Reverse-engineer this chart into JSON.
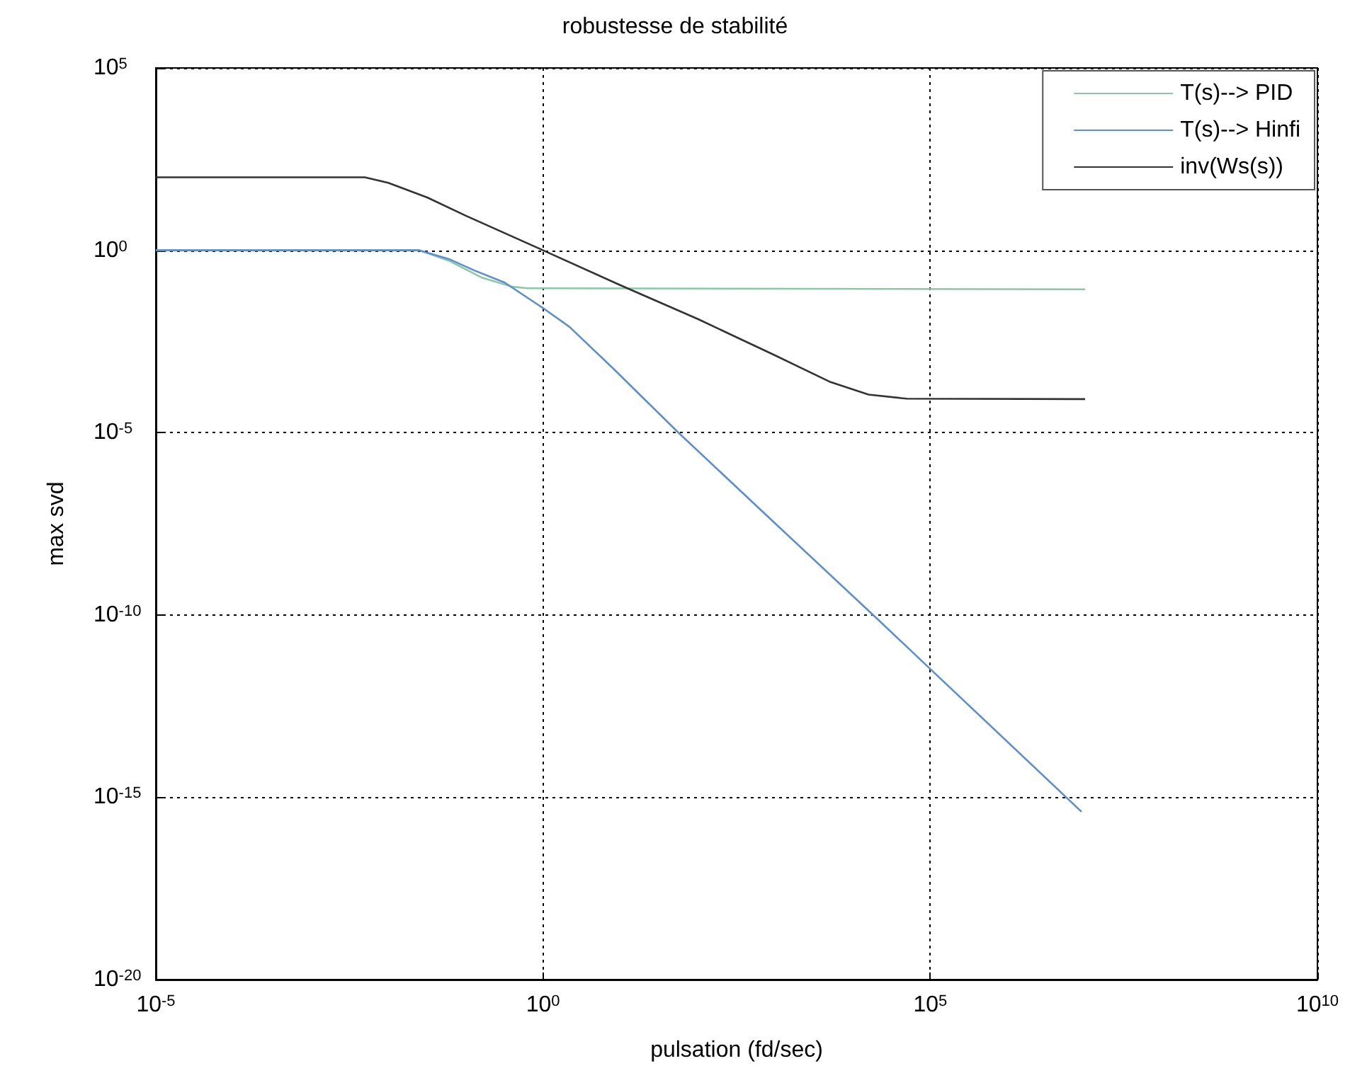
{
  "chart_data": {
    "type": "line",
    "title": "robustesse de stabilité",
    "xlabel": "pulsation (fd/sec)",
    "ylabel": "max svd",
    "log": "xy",
    "grid": true,
    "legend": "top right",
    "marker": "none",
    "xlim": [
      1e-05,
      10000000000.0
    ],
    "xticks": [
      {
        "value": 1e-05,
        "label": "10$^{-5}$"
      },
      {
        "value": 1,
        "label": "10$^{0}$"
      },
      {
        "value": 100000.0,
        "label": "10$^{5}$"
      },
      {
        "value": 10000000000.0,
        "label": "10$^{10}$"
      }
    ],
    "ylim": [
      1e-20,
      100000.0
    ],
    "yticks": [
      {
        "value": 1e-20,
        "label": "10$^{-20}$"
      },
      {
        "value": 1e-15,
        "label": "10$^{-15}$"
      },
      {
        "value": 1e-10,
        "label": "10$^{-10}$"
      },
      {
        "value": 1e-05,
        "label": "10$^{-5}$"
      },
      {
        "value": 1,
        "label": "10$^{0}$"
      },
      {
        "value": 100000.0,
        "label": "10$^{5}$"
      }
    ],
    "series": [
      {
        "name": "T(s)--> PID",
        "color": "#8cc8a8",
        "x": [
          1e-05,
          0.025,
          0.063,
          0.16,
          0.4,
          0.63,
          10000000.0
        ],
        "values": [
          1,
          1,
          0.5,
          0.18,
          0.1,
          0.091,
          0.085
        ]
      },
      {
        "name": "T(s)--> Hinfi",
        "color": "#5b8fcf",
        "x": [
          1e-05,
          0.025,
          0.063,
          0.13,
          0.32,
          1,
          2.2,
          8.3,
          56,
          1000,
          21000.0,
          91000.0,
          9000000.0
        ],
        "values": [
          1,
          1,
          0.56,
          0.28,
          0.13,
          0.026,
          0.0079,
          0.00054,
          1e-05,
          3.2e-08,
          7.6e-11,
          4e-12,
          4e-16
        ]
      },
      {
        "name": "inv(Ws(s))",
        "color": "#333333",
        "x": [
          1e-05,
          0.005,
          0.01,
          0.032,
          0.1,
          1,
          10,
          100,
          1000,
          5000,
          16000.0,
          50000.0,
          10000000.0
        ],
        "values": [
          100,
          100,
          71,
          28,
          8.9,
          1,
          0.11,
          0.013,
          0.0013,
          0.00025,
          0.00011,
          8.5e-05,
          8.3e-05
        ]
      }
    ]
  }
}
